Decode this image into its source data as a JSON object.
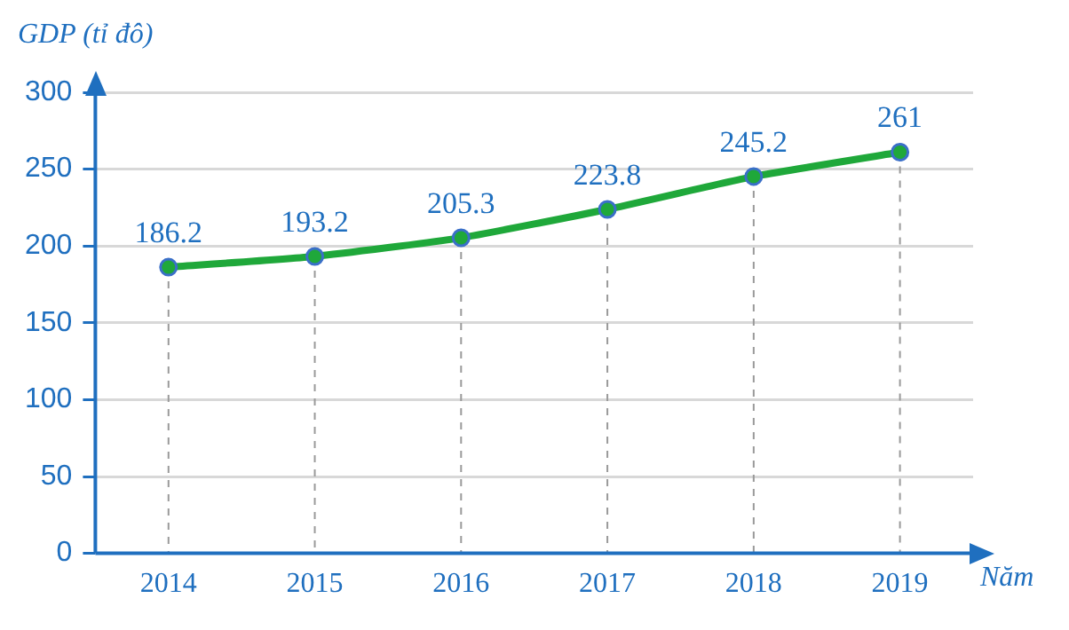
{
  "chart_data": {
    "type": "line",
    "xlabel": "Năm",
    "ylabel": "GDP (tỉ đô)",
    "categories": [
      "2014",
      "2015",
      "2016",
      "2017",
      "2018",
      "2019"
    ],
    "series": [
      {
        "color": "#1fa83a",
        "values": [
          186.2,
          193.2,
          205.3,
          223.8,
          245.2,
          261
        ]
      }
    ],
    "ylim": [
      0,
      300
    ],
    "yticks": [
      0,
      50,
      100,
      150,
      200,
      250,
      300
    ],
    "grid": true,
    "marker": "circle",
    "line_style": "solid",
    "data_labels": true,
    "legend": false
  }
}
